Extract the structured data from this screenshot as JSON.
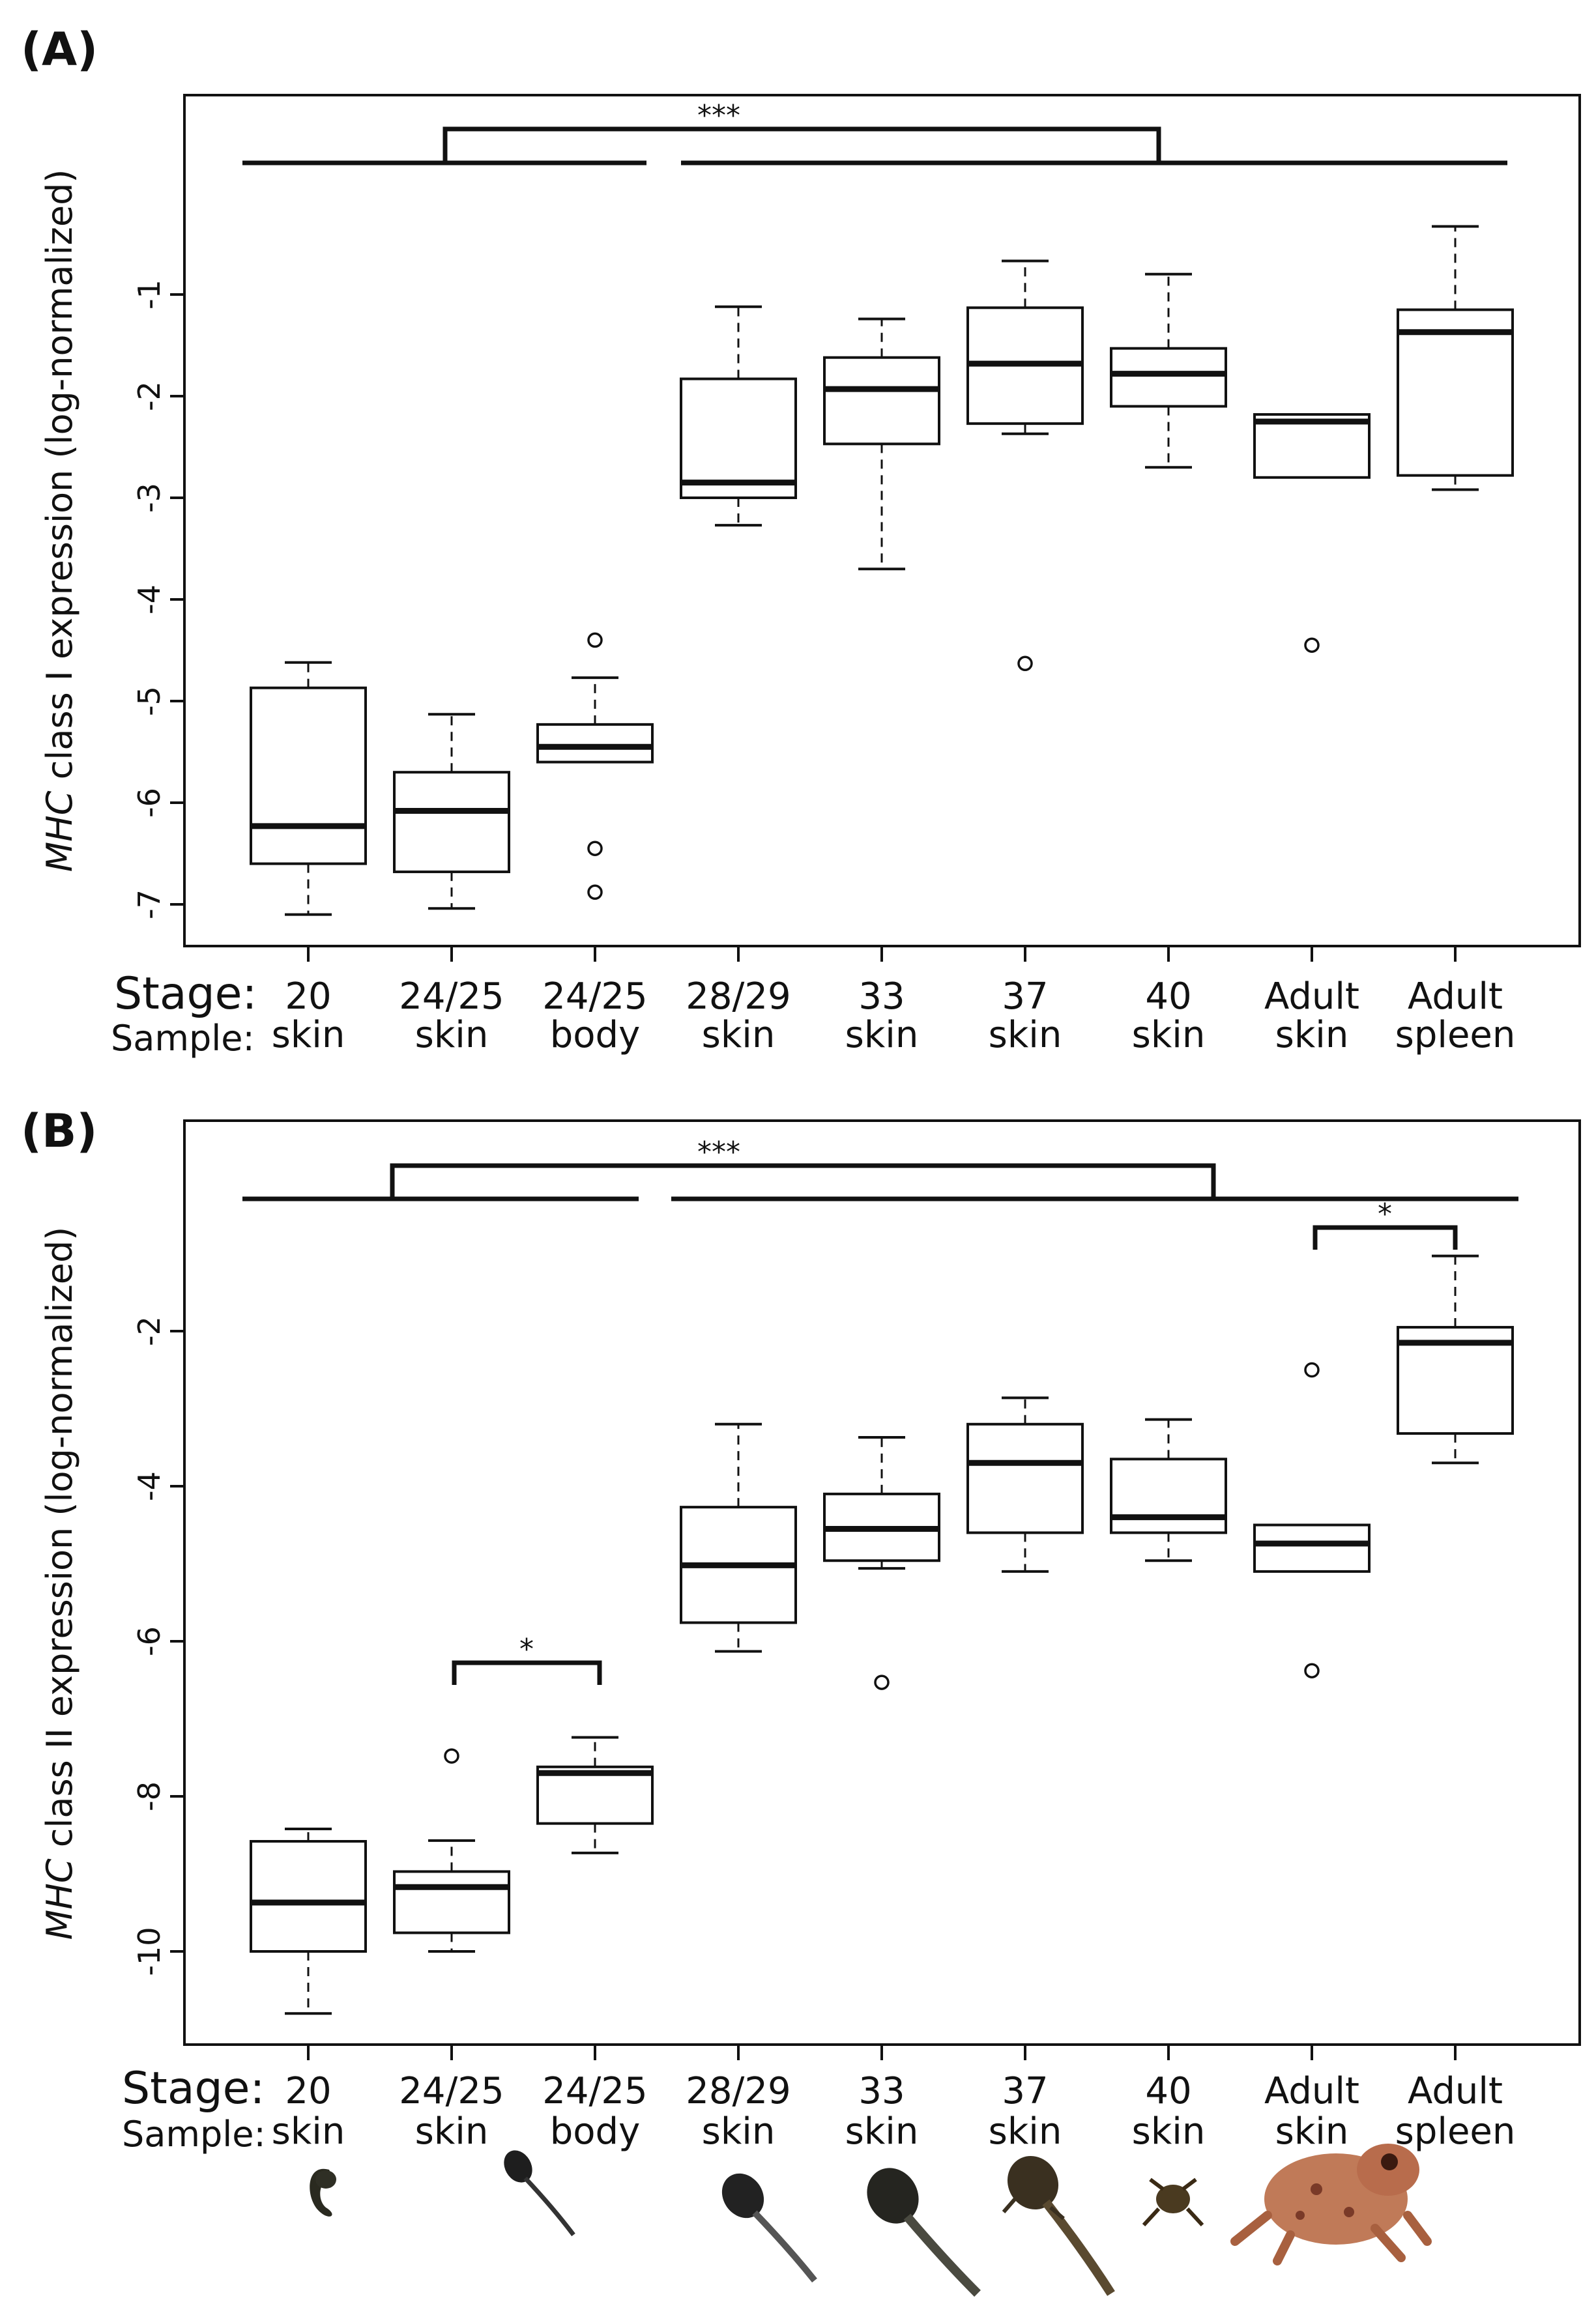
{
  "labels": {
    "stage": "Stage:",
    "sample": "Sample:"
  },
  "categories": [
    {
      "stage": "20",
      "sample": "skin"
    },
    {
      "stage": "24/25",
      "sample": "skin"
    },
    {
      "stage": "24/25",
      "sample": "body"
    },
    {
      "stage": "28/29",
      "sample": "skin"
    },
    {
      "stage": "33",
      "sample": "skin"
    },
    {
      "stage": "37",
      "sample": "skin"
    },
    {
      "stage": "40",
      "sample": "skin"
    },
    {
      "stage": "Adult",
      "sample": "skin"
    },
    {
      "stage": "Adult",
      "sample": "spleen"
    }
  ],
  "chart_data": [
    {
      "type": "boxplot",
      "panel": "(A)",
      "ylabel_italic": "MHC",
      "ylabel_rest": " class I expression (log-normalized)",
      "ylim": [
        -7.3,
        1.0
      ],
      "yticks": [
        -7,
        -6,
        -5,
        -4,
        -3,
        -2,
        -1
      ],
      "grid": false,
      "boxes": [
        {
          "min": -7.1,
          "q1": -6.6,
          "median": -6.23,
          "q3": -4.87,
          "max": -4.62,
          "outliers": []
        },
        {
          "min": -7.04,
          "q1": -6.68,
          "median": -6.08,
          "q3": -5.7,
          "max": -5.13,
          "outliers": []
        },
        {
          "min": null,
          "q1": -5.6,
          "median": -5.45,
          "q3": -5.23,
          "max": -4.77,
          "outliers": [
            -4.4,
            -6.45,
            -6.88
          ]
        },
        {
          "min": -3.27,
          "q1": -3.0,
          "median": -2.85,
          "q3": -1.83,
          "max": -1.12,
          "outliers": []
        },
        {
          "min": -3.7,
          "q1": -2.47,
          "median": -1.93,
          "q3": -1.62,
          "max": -1.24,
          "outliers": []
        },
        {
          "min": -2.37,
          "q1": -2.27,
          "median": -1.68,
          "q3": -1.13,
          "max": -0.67,
          "outliers": [
            -4.63
          ]
        },
        {
          "min": -2.7,
          "q1": -2.1,
          "median": -1.78,
          "q3": -1.53,
          "max": -0.8,
          "outliers": []
        },
        {
          "min": null,
          "q1": -2.8,
          "median": -2.25,
          "q3": -2.18,
          "max": null,
          "outliers": [
            -4.45
          ]
        },
        {
          "min": -2.92,
          "q1": -2.78,
          "median": -1.37,
          "q3": -1.15,
          "max": -0.33,
          "outliers": []
        }
      ],
      "significance": [
        {
          "label": "***",
          "level": "top",
          "from_group": [
            1,
            3
          ],
          "to_group": [
            4,
            9
          ]
        }
      ]
    },
    {
      "type": "boxplot",
      "panel": "(B)",
      "ylabel_italic": "MHC",
      "ylabel_rest": " class II expression (log-normalized)",
      "ylim": [
        -11.2,
        0.8
      ],
      "yticks": [
        -10,
        -8,
        -6,
        -4,
        -2
      ],
      "grid": false,
      "boxes": [
        {
          "min": -10.8,
          "q1": -10.0,
          "median": -9.37,
          "q3": -8.58,
          "max": -8.42,
          "outliers": []
        },
        {
          "min": -10.0,
          "q1": -9.76,
          "median": -9.17,
          "q3": -8.97,
          "max": -8.57,
          "outliers": [
            -7.48
          ]
        },
        {
          "min": -8.73,
          "q1": -8.35,
          "median": -7.7,
          "q3": -7.62,
          "max": -7.24,
          "outliers": []
        },
        {
          "min": -6.13,
          "q1": -5.76,
          "median": -5.02,
          "q3": -4.27,
          "max": -3.2,
          "outliers": []
        },
        {
          "min": -5.06,
          "q1": -4.96,
          "median": -4.55,
          "q3": -4.1,
          "max": -3.37,
          "outliers": [
            -6.53
          ]
        },
        {
          "min": -5.1,
          "q1": -4.6,
          "median": -3.7,
          "q3": -3.2,
          "max": -2.86,
          "outliers": []
        },
        {
          "min": -4.96,
          "q1": -4.6,
          "median": -4.4,
          "q3": -3.65,
          "max": -3.14,
          "outliers": []
        },
        {
          "min": null,
          "q1": -5.1,
          "median": -4.74,
          "q3": -4.5,
          "max": null,
          "outliers": [
            -2.5,
            -6.38
          ]
        },
        {
          "min": -3.7,
          "q1": -3.32,
          "median": -2.15,
          "q3": -1.95,
          "max": -1.03,
          "outliers": []
        }
      ],
      "significance": [
        {
          "label": "***",
          "level": "top",
          "from_group": [
            1,
            3
          ],
          "to_group": [
            4,
            9
          ]
        },
        {
          "label": "*",
          "level": "local",
          "from_group": [
            8
          ],
          "to_group": [
            9
          ]
        },
        {
          "label": "*",
          "level": "local",
          "from_group": [
            2
          ],
          "to_group": [
            3
          ]
        }
      ]
    }
  ]
}
